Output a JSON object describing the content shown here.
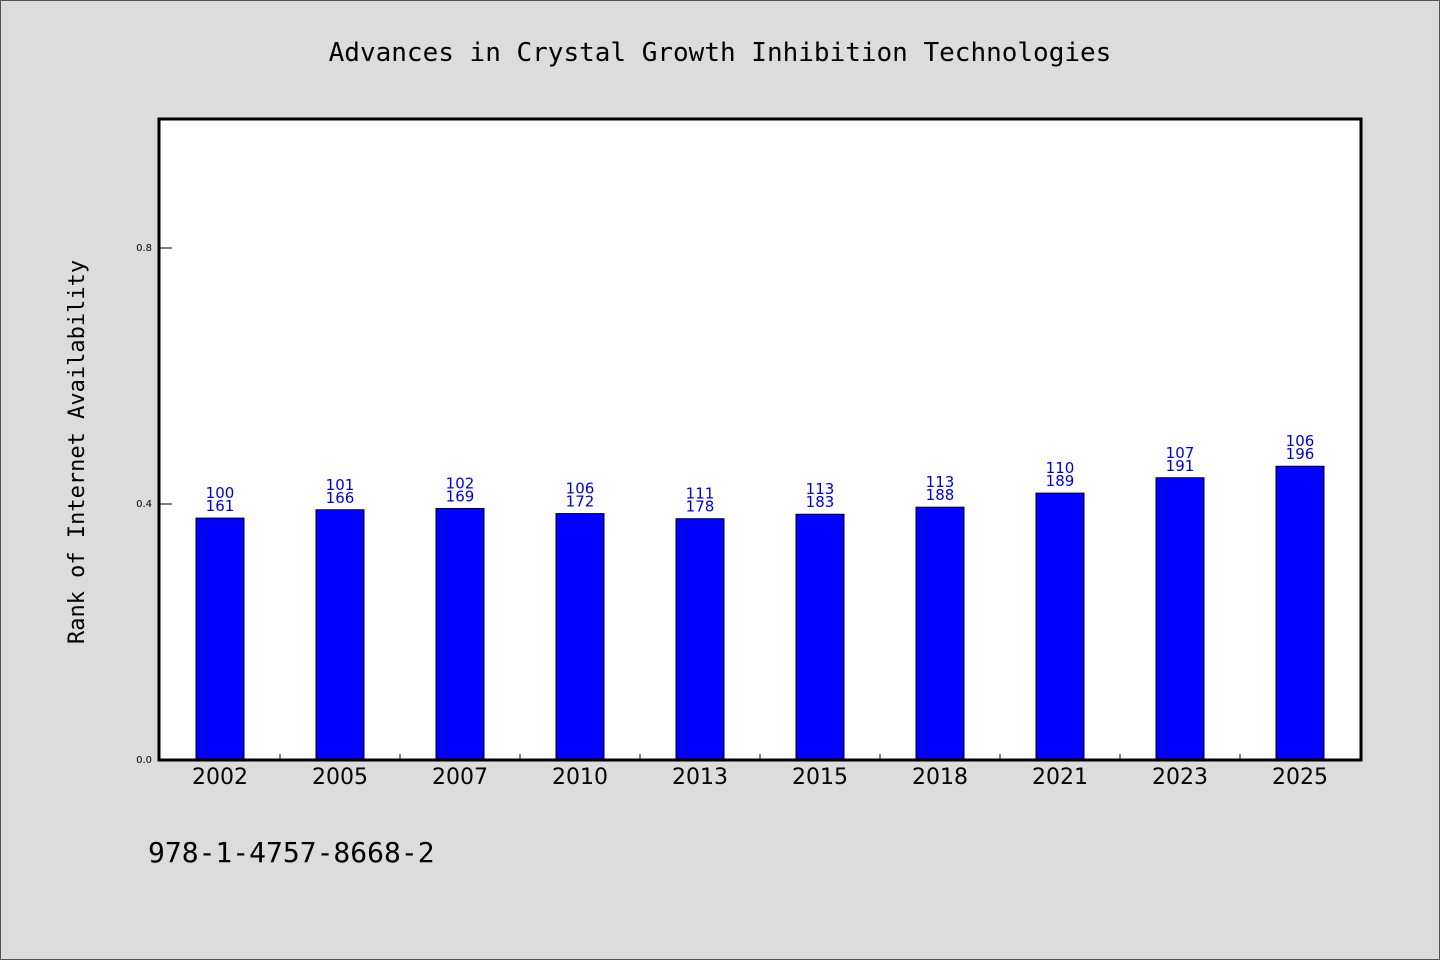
{
  "chart_data": {
    "type": "bar",
    "title": "Advances in Crystal Growth Inhibition Technologies",
    "xlabel": "",
    "ylabel": "Rank of Internet Availability",
    "categories": [
      "2002",
      "2005",
      "2007",
      "2010",
      "2013",
      "2015",
      "2018",
      "2021",
      "2023",
      "2025"
    ],
    "series": [
      {
        "values": [
          0.378,
          0.391,
          0.393,
          0.385,
          0.377,
          0.384,
          0.395,
          0.417,
          0.441,
          0.459
        ],
        "color": "#0000ff"
      }
    ],
    "bar_labels_top": [
      "100",
      "101",
      "102",
      "106",
      "111",
      "113",
      "113",
      "110",
      "107",
      "106"
    ],
    "bar_labels_bottom": [
      "161",
      "166",
      "169",
      "172",
      "178",
      "183",
      "188",
      "189",
      "191",
      "196"
    ],
    "label_color": "#0000cc",
    "ylim": [
      0.0,
      1.0
    ],
    "yticks": [
      "0.0",
      "0.4",
      "0.8"
    ],
    "ytick_values": [
      0.0,
      0.4,
      0.8
    ],
    "grid": false,
    "legend": "none"
  },
  "footer": {
    "isbn": "978-1-4757-8668-2"
  },
  "colors": {
    "background": "#dcdcdc",
    "plot_background": "#ffffff",
    "bar": "#0000ff",
    "bar_label": "#0000cc"
  }
}
